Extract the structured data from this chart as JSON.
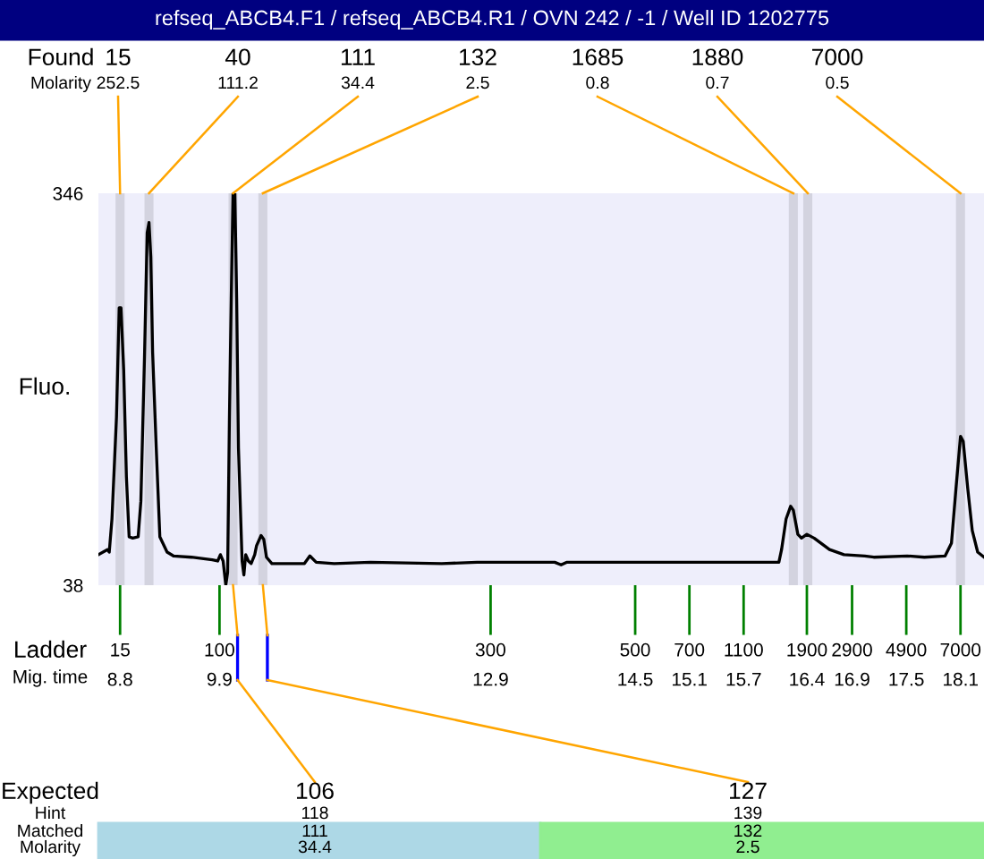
{
  "chart_data": {
    "type": "line",
    "title": "refseq_ABCB4.F1 / refseq_ABCB4.R1 / OVN 242 / -1 / Well ID 1202775",
    "ylabel": "Fluo.",
    "xlabel": "Mig. time",
    "x": [
      8.56,
      8.66,
      8.68,
      8.71,
      8.76,
      8.79,
      8.81,
      8.84,
      8.87,
      8.9,
      8.94,
      9.0,
      9.03,
      9.07,
      9.1,
      9.12,
      9.14,
      9.16,
      9.2,
      9.24,
      9.32,
      9.39,
      9.59,
      9.82,
      9.88,
      9.91,
      9.94,
      9.97,
      9.99,
      10.01,
      10.03,
      10.05,
      10.07,
      10.09,
      10.11,
      10.15,
      10.17,
      10.19,
      10.22,
      10.25,
      10.29,
      10.31,
      10.36,
      10.39,
      10.42,
      10.48,
      10.84,
      10.9,
      10.97,
      11.17,
      11.57,
      12.36,
      12.75,
      12.82,
      13.61,
      13.68,
      13.74,
      16.09,
      16.12,
      16.17,
      16.22,
      16.25,
      16.3,
      16.34,
      16.4,
      16.48,
      16.65,
      16.81,
      17.04,
      17.14,
      17.51,
      17.7,
      17.93,
      18.0,
      18.05,
      18.1,
      18.13,
      18.18,
      18.23,
      18.29,
      18.36
    ],
    "series": [
      {
        "color": "#000000",
        "values": [
          62,
          66,
          64,
          90,
          170,
          256,
          256,
          207,
          123,
          76,
          75,
          76,
          104,
          217,
          315,
          323,
          296,
          221,
          146,
          76,
          64,
          61,
          60,
          58,
          57,
          62,
          57,
          38,
          48,
          170,
          263,
          346,
          346,
          263,
          146,
          57,
          46,
          62,
          57,
          55,
          62,
          69,
          77,
          74,
          60,
          55,
          55,
          61,
          56,
          55,
          56,
          55,
          56,
          56,
          56,
          54,
          56,
          56,
          66,
          90,
          100,
          97,
          78,
          75,
          78,
          75,
          66,
          62,
          61,
          60,
          61,
          60,
          61,
          71,
          114,
          155,
          151,
          114,
          81,
          64,
          60
        ]
      }
    ],
    "xlim": [
      8.56,
      18.36
    ],
    "ylim": [
      38,
      346
    ],
    "yticks": [
      38,
      346
    ],
    "xticks": [
      8.8,
      9.9,
      12.9,
      14.5,
      15.1,
      15.7,
      16.4,
      16.9,
      17.5,
      18.1
    ],
    "bands": [
      {
        "axis": "x",
        "from": 8.75,
        "to": 8.85,
        "color": "#d3d3df"
      },
      {
        "axis": "x",
        "from": 9.07,
        "to": 9.17,
        "color": "#d3d3df"
      },
      {
        "axis": "x",
        "from": 10.0,
        "to": 10.1,
        "color": "#d3d3df"
      },
      {
        "axis": "x",
        "from": 10.33,
        "to": 10.43,
        "color": "#d3d3df"
      },
      {
        "axis": "x",
        "from": 16.2,
        "to": 16.3,
        "color": "#d3d3df"
      },
      {
        "axis": "x",
        "from": 16.36,
        "to": 16.46,
        "color": "#d3d3df"
      },
      {
        "axis": "x",
        "from": 18.05,
        "to": 18.15,
        "color": "#d3d3df"
      }
    ],
    "annotations": [
      "Found",
      "Molarity",
      "15",
      "40",
      "111",
      "132",
      "1685",
      "1880",
      "7000",
      "252.5",
      "111.2",
      "34.4",
      "2.5",
      "0.8",
      "0.7",
      "0.5",
      "Ladder",
      "15",
      "100",
      "300",
      "500",
      "700",
      "1100",
      "1900",
      "2900",
      "4900",
      "7000",
      "Expected",
      "Hint",
      "Matched",
      "Molarity",
      "106",
      "127",
      "118",
      "139",
      "111",
      "132",
      "34.4",
      "2.5"
    ],
    "grid": false
  }
}
